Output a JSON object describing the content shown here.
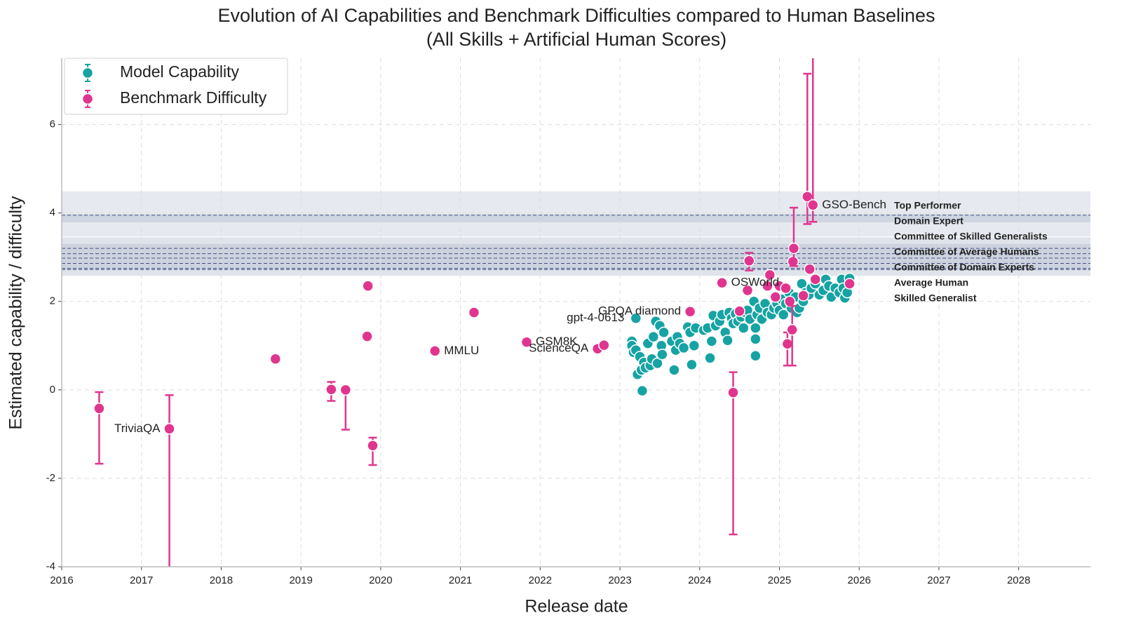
{
  "chart_data": {
    "type": "scatter",
    "title": "Evolution of AI Capabilities and Benchmark Difficulties compared to Human Baselines",
    "subtitle": "(All Skills + Artificial Human Scores)",
    "x_label": "Release date",
    "y_label": "Estimated capability / difficulty",
    "xlim": [
      2016,
      2028.9
    ],
    "ylim": [
      -4,
      7.5
    ],
    "xticks": [
      2016,
      2017,
      2018,
      2019,
      2020,
      2021,
      2022,
      2023,
      2024,
      2025,
      2026,
      2027,
      2028
    ],
    "yticks": [
      -4,
      -2,
      0,
      2,
      4,
      6
    ],
    "grid": true,
    "legend_loc": "upper left",
    "series": [
      {
        "name": "Model Capability",
        "color": "#17a3a3",
        "x": [
          2023.15,
          2023.15,
          2023.17,
          2023.2,
          2023.22,
          2023.25,
          2023.27,
          2023.28,
          2023.3,
          2023.32,
          2023.35,
          2023.38,
          2023.4,
          2023.42,
          2023.45,
          2023.47,
          2023.5,
          2023.52,
          2023.53,
          2023.55,
          2023.2,
          2023.65,
          2023.68,
          2023.7,
          2023.72,
          2023.75,
          2023.8,
          2023.85,
          2023.88,
          2023.9,
          2023.93,
          2023.95,
          2024.05,
          2024.1,
          2024.13,
          2024.15,
          2024.17,
          2024.2,
          2024.25,
          2024.28,
          2024.32,
          2024.35,
          2024.37,
          2024.4,
          2024.42,
          2024.45,
          2024.48,
          2024.52,
          2024.55,
          2024.57,
          2024.6,
          2024.63,
          2024.68,
          2024.7,
          2024.7,
          2024.7,
          2024.72,
          2024.75,
          2024.78,
          2024.82,
          2024.85,
          2024.9,
          2024.93,
          2024.97,
          2025.0,
          2025.03,
          2025.05,
          2025.08,
          2025.12,
          2025.15,
          2025.2,
          2025.22,
          2025.25,
          2025.28,
          2025.3,
          2025.33,
          2025.37,
          2025.4,
          2025.45,
          2025.5,
          2025.55,
          2025.58,
          2025.62,
          2025.65,
          2025.7,
          2025.75,
          2025.78,
          2025.8,
          2025.82,
          2025.85,
          2025.88
        ],
        "values": [
          1.1,
          1.0,
          0.85,
          0.9,
          0.35,
          0.75,
          0.45,
          -0.02,
          0.62,
          0.5,
          1.05,
          0.55,
          0.7,
          1.2,
          1.55,
          0.6,
          1.45,
          1.0,
          0.8,
          1.3,
          1.62,
          1.1,
          0.45,
          0.9,
          1.2,
          1.05,
          0.95,
          1.42,
          1.3,
          0.57,
          1.0,
          1.4,
          1.35,
          1.4,
          0.72,
          1.1,
          1.68,
          1.45,
          1.55,
          1.7,
          1.3,
          1.12,
          1.75,
          1.62,
          1.5,
          1.72,
          1.55,
          1.65,
          1.4,
          1.75,
          1.8,
          1.6,
          2.0,
          1.4,
          1.15,
          0.77,
          1.7,
          1.85,
          1.6,
          1.95,
          1.75,
          1.7,
          1.85,
          1.95,
          1.8,
          2.05,
          1.7,
          1.95,
          2.2,
          1.85,
          2.1,
          1.75,
          1.85,
          2.4,
          2.0,
          2.2,
          2.15,
          2.3,
          2.4,
          2.15,
          2.25,
          2.5,
          2.35,
          2.1,
          2.3,
          2.2,
          2.5,
          2.3,
          2.08,
          2.2,
          2.52
        ]
      },
      {
        "name": "Benchmark Difficulty",
        "color": "#e0358f",
        "x": [
          2016.47,
          2017.35,
          2018.68,
          2019.38,
          2019.56,
          2019.83,
          2019.84,
          2019.9,
          2020.68,
          2021.17,
          2021.83,
          2022.72,
          2022.8,
          2023.88,
          2024.28,
          2024.42,
          2024.5,
          2024.6,
          2024.62,
          2024.85,
          2024.88,
          2024.95,
          2025.0,
          2025.08,
          2025.1,
          2025.13,
          2025.16,
          2025.17,
          2025.18,
          2025.3,
          2025.35,
          2025.38,
          2025.42,
          2025.45,
          2025.88
        ],
        "values": [
          -0.42,
          -0.88,
          0.7,
          0.01,
          0.0,
          1.21,
          2.35,
          -1.26,
          0.88,
          1.75,
          1.08,
          0.93,
          1.01,
          1.77,
          2.42,
          -0.06,
          1.78,
          2.25,
          2.92,
          2.35,
          2.6,
          2.1,
          2.35,
          2.3,
          1.04,
          2.0,
          1.36,
          2.9,
          3.2,
          2.13,
          4.37,
          2.73,
          4.18,
          2.5,
          2.4
        ],
        "err_low": [
          1.25,
          3.7,
          null,
          0.26,
          0.9,
          null,
          null,
          0.44,
          null,
          null,
          null,
          null,
          null,
          null,
          null,
          3.21,
          null,
          null,
          0.22,
          null,
          null,
          null,
          null,
          null,
          0.49,
          null,
          0.81,
          null,
          0.4,
          null,
          0.62,
          null,
          0.38,
          null,
          null
        ],
        "err_high": [
          0.37,
          0.76,
          null,
          0.17,
          0.0,
          null,
          null,
          0.18,
          null,
          null,
          null,
          null,
          null,
          null,
          null,
          0.46,
          null,
          null,
          0.18,
          null,
          null,
          null,
          null,
          null,
          0.26,
          null,
          0.54,
          null,
          0.92,
          null,
          2.78,
          null,
          3.6,
          null,
          null
        ]
      }
    ],
    "annotations": [
      {
        "text": "TriviaQA",
        "x": 2017.35,
        "y": -0.88,
        "ha": "right"
      },
      {
        "text": "MMLU",
        "x": 2020.68,
        "y": 0.88,
        "ha": "left"
      },
      {
        "text": "GSM8K",
        "x": 2021.83,
        "y": 1.08,
        "ha": "left"
      },
      {
        "text": "ScienceQA",
        "x": 2022.72,
        "y": 0.93,
        "ha": "right"
      },
      {
        "text": "GPQA diamond",
        "x": 2023.88,
        "y": 1.77,
        "ha": "right"
      },
      {
        "text": "gpt-4-0613",
        "x": 2023.17,
        "y": 1.62,
        "ha": "right"
      },
      {
        "text": "OSWorld",
        "x": 2024.28,
        "y": 2.42,
        "ha": "left"
      },
      {
        "text": "GSO-Bench",
        "x": 2025.42,
        "y": 4.18,
        "ha": "left"
      }
    ],
    "bands": [
      {
        "lower": 3.47,
        "upper": 4.49,
        "color": "#e6e9ef"
      },
      {
        "lower": 3.79,
        "upper": 3.97,
        "color": "#ced5e0"
      },
      {
        "lower": 2.58,
        "upper": 3.45,
        "color": "#dfe3ea"
      },
      {
        "lower": 2.72,
        "upper": 3.3,
        "color": "#cdd3de"
      }
    ],
    "human_baselines": {
      "color": "#1f2f6e",
      "items": [
        {
          "name": "Top Performer",
          "value": 3.95
        },
        {
          "name": "Domain Expert",
          "value": 3.2
        },
        {
          "name": "Committee of Skilled Generalists",
          "value": 3.08
        },
        {
          "name": "Committee of Average Humans",
          "value": 2.98
        },
        {
          "name": "Committee of Domain Experts",
          "value": 2.86
        },
        {
          "name": "Average Human",
          "value": 2.75
        },
        {
          "name": "Skilled Generalist",
          "value": 2.72
        }
      ]
    }
  }
}
